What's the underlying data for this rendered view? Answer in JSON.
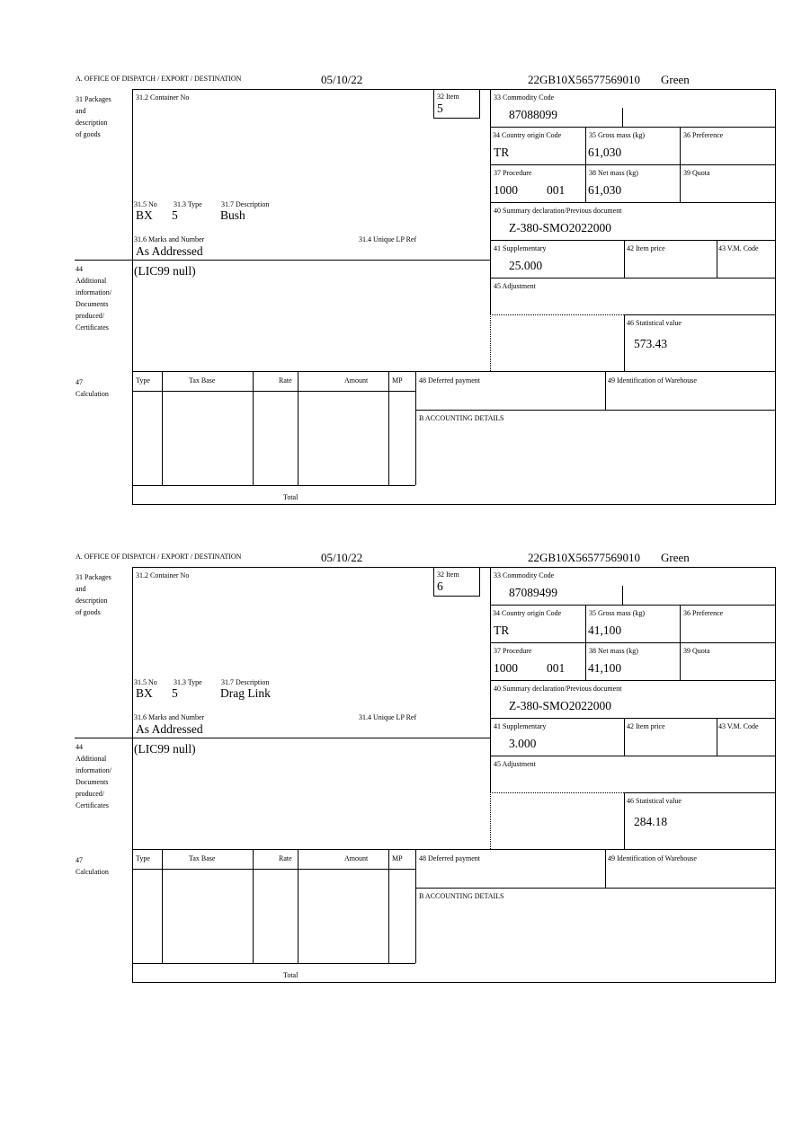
{
  "labels": {
    "office": "A.  OFFICE OF DISPATCH / EXPORT / DESTINATION",
    "packages": "31 Packages\nand\ndescription\nof goods",
    "container": "31.2 Container No",
    "item": "32 Item",
    "commodity": "33 Commodity Code",
    "country": "34 Country origin Code",
    "gross": "35 Gross mass (kg)",
    "preference": "36 Preference",
    "procedure": "37 Procedure",
    "net": "38 Net mass (kg)",
    "quota": "39 Quota",
    "summary": "40 Summary declaration/Previous document",
    "supplementary": "41 Supplementary",
    "item_price": "42 Item price",
    "vm_code": "43 V.M. Code",
    "adjustment": "45 Adjustment",
    "stat_value": "46 Statistical value",
    "no": "31.5 No",
    "type": "31.3 Type",
    "description": "31.7 Description",
    "marks": "31.6 Marks and Number",
    "unique_ref": "31.4 Unique LP Ref",
    "additional": "44\nAdditional\ninformation/\nDocuments\nproduced/\nCertificates",
    "calculation": "47\nCalculation",
    "calc_type": "Type",
    "calc_tax_base": "Tax Base",
    "calc_rate": "Rate",
    "calc_amount": "Amount",
    "calc_mp": "MP",
    "deferred": "48 Deferred payment",
    "warehouse": "49 Identification of Warehouse",
    "accounting": "B ACCOUNTING DETAILS",
    "total": "Total"
  },
  "items": [
    {
      "date": "05/10/22",
      "reference": "22GB10X56577569010",
      "route": "Green",
      "item_no": "5",
      "commodity_code": "87088099",
      "country_origin": "TR",
      "gross_mass": "61,030",
      "procedure": "1000",
      "procedure_extra": "001",
      "net_mass": "61,030",
      "summary_doc": "Z-380-SMO2022000",
      "supplementary": "25.000",
      "stat_value": "573.43",
      "pkg_no": "BX",
      "pkg_type": "5",
      "description": "Bush",
      "marks": "As Addressed",
      "additional_info": "(LIC99 null)"
    },
    {
      "date": "05/10/22",
      "reference": "22GB10X56577569010",
      "route": "Green",
      "item_no": "6",
      "commodity_code": "87089499",
      "country_origin": "TR",
      "gross_mass": "41,100",
      "procedure": "1000",
      "procedure_extra": "001",
      "net_mass": "41,100",
      "summary_doc": "Z-380-SMO2022000",
      "supplementary": "3.000",
      "stat_value": "284.18",
      "pkg_no": "BX",
      "pkg_type": "5",
      "description": "Drag Link",
      "marks": "As Addressed",
      "additional_info": "(LIC99 null)"
    }
  ]
}
